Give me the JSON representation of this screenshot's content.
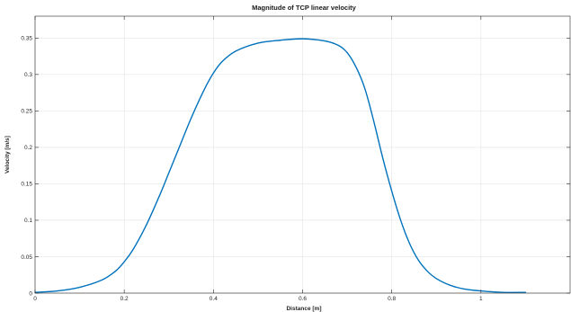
{
  "chart_data": {
    "type": "line",
    "title": "Magnitude of TCP linear velocity",
    "xlabel": "Distance [m]",
    "ylabel": "Velocity [m/s]",
    "xlim": [
      0,
      1.2
    ],
    "ylim": [
      0,
      0.38
    ],
    "grid": true,
    "x_ticks": [
      "0",
      "0.2",
      "0.4",
      "0.6",
      "0.8",
      "1"
    ],
    "y_ticks": [
      "0",
      "0.05",
      "0.1",
      "0.15",
      "0.2",
      "0.25",
      "0.3",
      "0.35"
    ],
    "series": [
      {
        "color": "#0072bd",
        "x": [
          0,
          0.05,
          0.1,
          0.15,
          0.18,
          0.2,
          0.22,
          0.25,
          0.28,
          0.3,
          0.32,
          0.35,
          0.38,
          0.4,
          0.42,
          0.45,
          0.5,
          0.55,
          0.6,
          0.65,
          0.68,
          0.7,
          0.72,
          0.74,
          0.76,
          0.78,
          0.8,
          0.82,
          0.84,
          0.86,
          0.88,
          0.9,
          0.93,
          0.96,
          1.0,
          1.05,
          1.1
        ],
        "y": [
          0.001,
          0.003,
          0.008,
          0.018,
          0.03,
          0.043,
          0.06,
          0.094,
          0.135,
          0.165,
          0.195,
          0.24,
          0.28,
          0.302,
          0.318,
          0.332,
          0.343,
          0.347,
          0.349,
          0.346,
          0.34,
          0.33,
          0.31,
          0.28,
          0.235,
          0.185,
          0.14,
          0.1,
          0.068,
          0.045,
          0.03,
          0.02,
          0.011,
          0.006,
          0.003,
          0.001,
          0.001
        ]
      }
    ]
  }
}
